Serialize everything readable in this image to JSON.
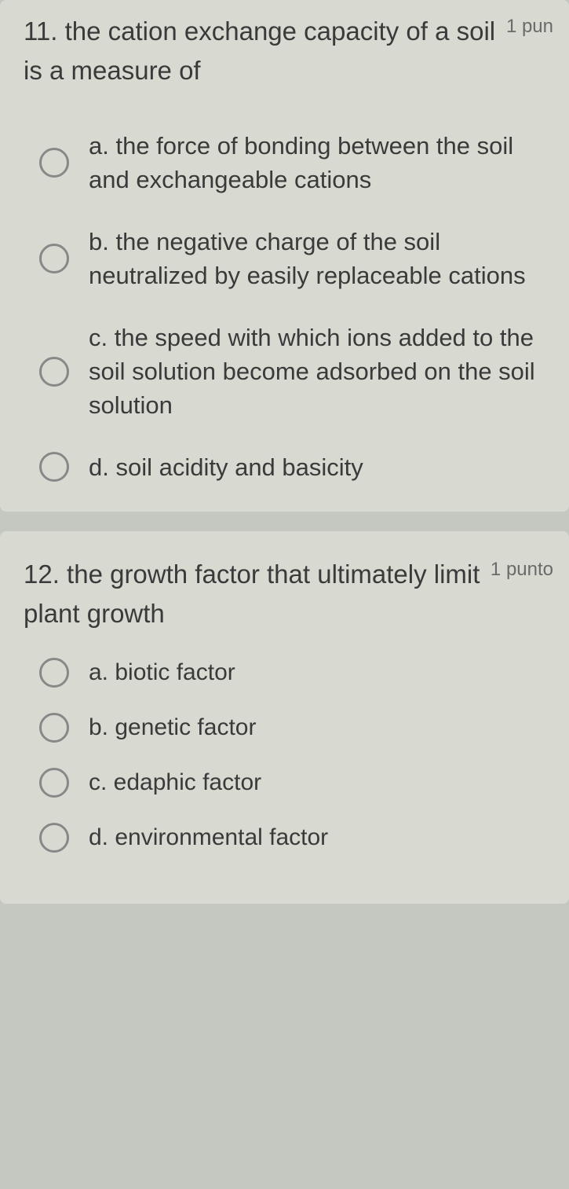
{
  "questions": [
    {
      "number": "11.",
      "text": "the cation exchange capacity of a soil is a measure of",
      "points": "1 pun",
      "options": [
        "a. the force of bonding between the soil and exchangeable cations",
        "b.  the negative charge of the soil neutralized by easily replaceable cations",
        "c.    the speed with which ions added to the soil solution become adsorbed on the soil solution",
        "d.  soil acidity and basicity"
      ]
    },
    {
      "number": "12.",
      "text": "the growth factor that ultimately limit plant growth",
      "points": "1 punto",
      "options": [
        "a. biotic factor",
        "b. genetic factor",
        "c. edaphic factor",
        "d. environmental factor"
      ]
    }
  ],
  "styling": {
    "background_color": "#c5c8c0",
    "card_background": "#d8dad2",
    "text_color": "#3a3a3a",
    "points_color": "#6a6a6a",
    "radio_border_color": "#888888",
    "question_fontsize": 33,
    "option_fontsize": 31,
    "points_fontsize": 24
  }
}
